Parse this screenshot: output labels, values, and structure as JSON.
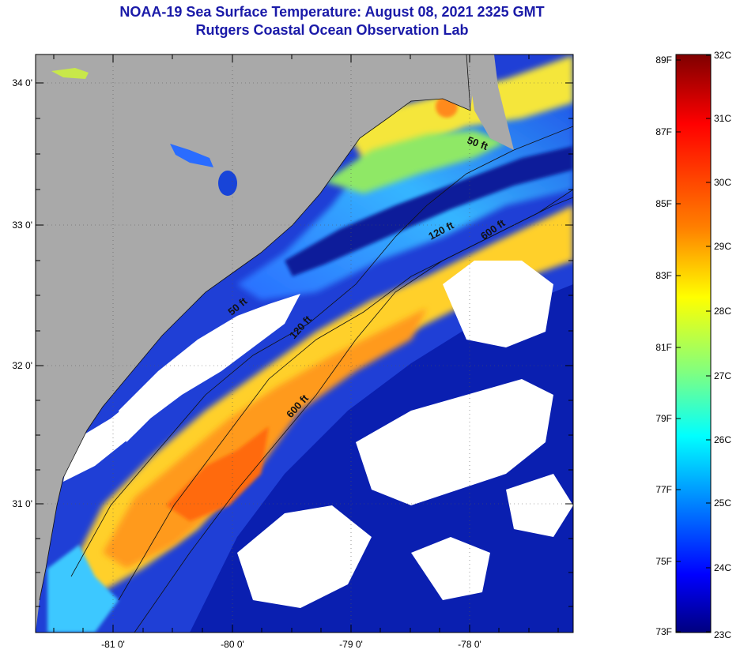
{
  "header": {
    "title_line1": "NOAA-19 Sea Surface Temperature:  August 08, 2021 2325 GMT",
    "title_line2": "Rutgers Coastal Ocean Observation Lab"
  },
  "map": {
    "lon_ticks": [
      "-81 0'",
      "-80 0'",
      "-79 0'",
      "-78 0'"
    ],
    "lat_ticks": [
      "34 0'",
      "33 0'",
      "32 0'",
      "31 0'"
    ],
    "contour_labels": [
      "50 ft",
      "120 ft",
      "600 ft",
      "50 ft",
      "120 ft",
      "600 ft"
    ],
    "colors": {
      "land": "#a9a9a9",
      "cloud": "#ffffff"
    }
  },
  "colorbar": {
    "f_labels": [
      "89F",
      "87F",
      "85F",
      "83F",
      "81F",
      "79F",
      "77F",
      "75F",
      "73F"
    ],
    "c_labels": [
      "32C",
      "31C",
      "30C",
      "29C",
      "28C",
      "27C",
      "26C",
      "25C",
      "24C",
      "23C"
    ],
    "stops": [
      "#7f0000",
      "#ff0000",
      "#ff8000",
      "#ffff00",
      "#80ff80",
      "#00ffff",
      "#0080ff",
      "#0000ff",
      "#00007f"
    ]
  }
}
